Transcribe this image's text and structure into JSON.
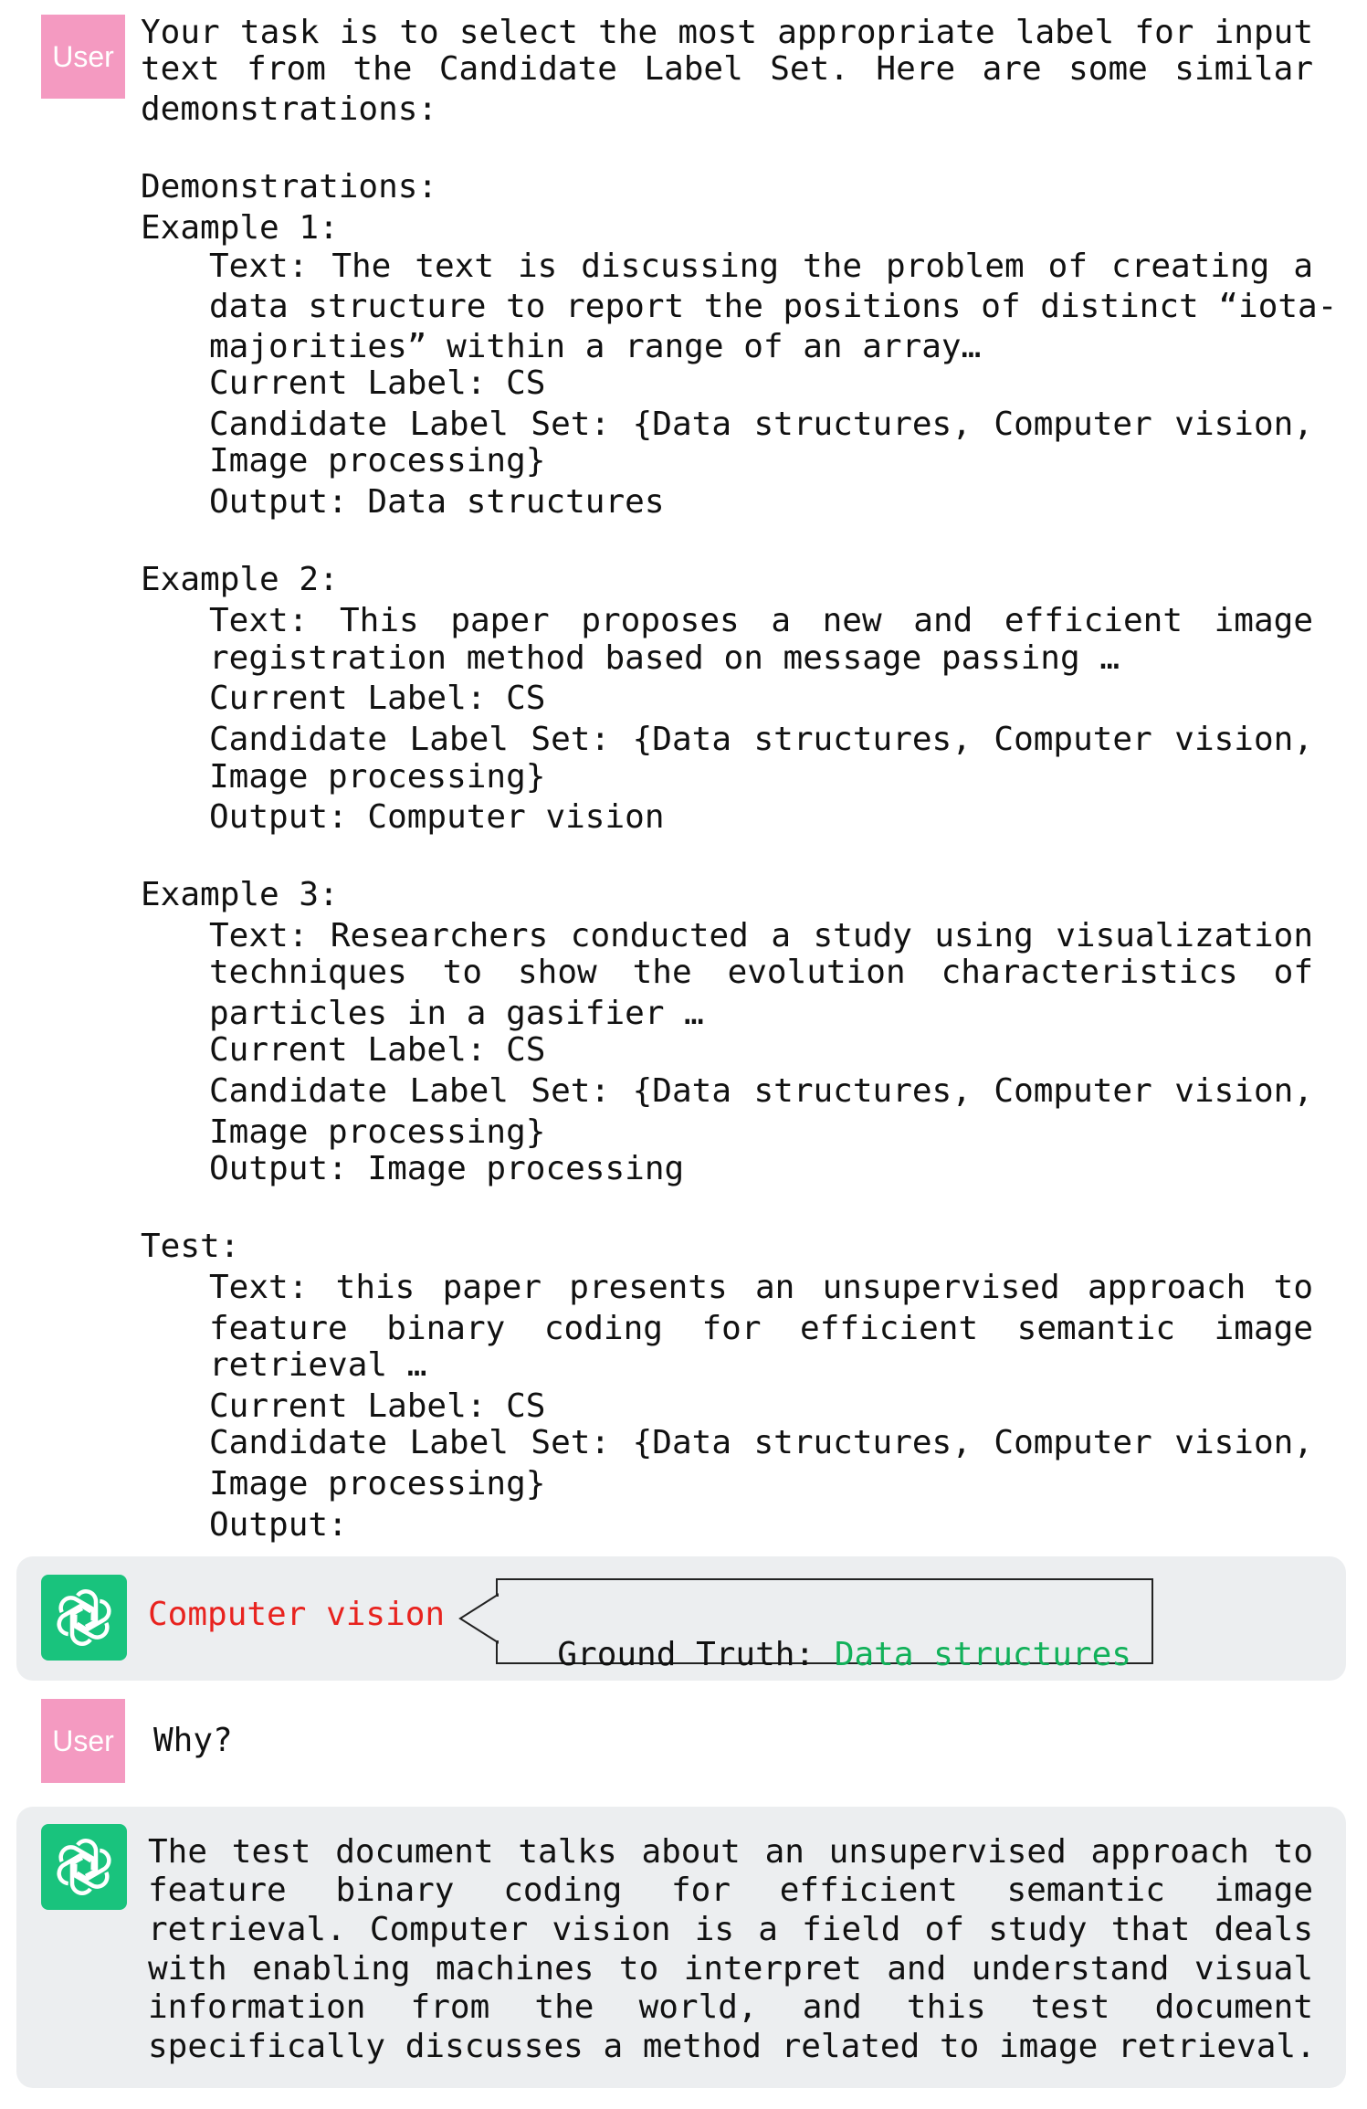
{
  "user_label": "User",
  "prompt": {
    "intro": [
      "Your task is to select the most appropriate label for input",
      "text from the Candidate Label Set. Here are some similar",
      "demonstrations:"
    ],
    "demos_header": "Demonstrations:",
    "examples": [
      {
        "title": "Example 1:",
        "lines": [
          "Text: The text is discussing the problem of creating a",
          "data structure to report the positions of distinct “iota-",
          "majorities” within a range of an array…",
          "Current Label: CS",
          "Candidate Label Set: {Data structures, Computer vision,",
          "Image processing}",
          "Output: Data structures"
        ]
      },
      {
        "title": "Example 2:",
        "lines": [
          "Text: This paper proposes a new and efficient image",
          "registration method based on message passing …",
          "Current Label: CS",
          "Candidate Label Set: {Data structures, Computer vision,",
          "Image processing}",
          "Output: Computer vision"
        ]
      },
      {
        "title": "Example 3:",
        "lines": [
          "Text: Researchers conducted a study using visualization",
          "techniques to show the evolution characteristics of",
          "particles in a gasifier …",
          "Current Label: CS",
          "Candidate Label Set: {Data structures, Computer vision,",
          "Image processing}",
          "Output: Image processing"
        ]
      },
      {
        "title": "Test:",
        "lines": [
          "Text: this paper presents an unsupervised approach to",
          "feature binary coding for efficient semantic image",
          "retrieval …",
          "Current Label: CS",
          "Candidate Label Set: {Data structures, Computer vision,",
          "Image processing}",
          "Output:"
        ]
      }
    ]
  },
  "answer1": "Computer vision",
  "ground_truth": {
    "label": "Ground Truth:",
    "value": "Data structures"
  },
  "user_question": "Why?",
  "answer2": [
    "The test document talks about an unsupervised approach to",
    "feature binary coding for efficient semantic image",
    "retrieval. Computer vision is a field of study that deals",
    "with enabling machines to interpret and understand visual",
    "information from the world, and this test document",
    "specifically discusses a method related to image retrieval."
  ],
  "icons": {
    "bot": "openai-logo-icon"
  },
  "colors": {
    "user_avatar": "#f49ac1",
    "bot_avatar": "#19c37d",
    "wrong": "#e8231f",
    "correct": "#12b15a",
    "bubble": "#eceef0"
  }
}
